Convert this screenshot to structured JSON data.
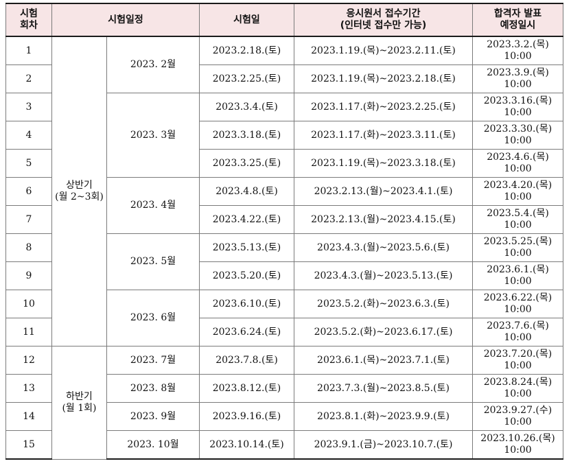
{
  "headers": {
    "round_l1": "시험",
    "round_l2": "회차",
    "schedule": "시험일정",
    "exam_date": "시험일",
    "apply_l1": "응시원서 접수기간",
    "apply_l2": "(인터넷 접수만 가능)",
    "result_l1": "합격자 발표",
    "result_l2": "예정일시"
  },
  "halves": [
    {
      "l1": "상반기",
      "l2": "(월 2~3회)"
    },
    {
      "l1": "하반기",
      "l2": "(월 1회)"
    }
  ],
  "months": [
    "2023. 2월",
    "2023. 3월",
    "2023. 4월",
    "2023. 5월",
    "2023. 6월",
    "2023. 7월",
    "2023. 8월",
    "2023. 9월",
    "2023. 10월"
  ],
  "rows": [
    {
      "no": "1",
      "exam": "2023.2.18.(토)",
      "apply": "2023.1.19.(목)~2023.2.11.(토)",
      "result_date": "2023.3.2.(목)",
      "result_time": "10:00"
    },
    {
      "no": "2",
      "exam": "2023.2.25.(토)",
      "apply": "2023.1.19.(목)~2023.2.18.(토)",
      "result_date": "2023.3.9.(목)",
      "result_time": "10:00"
    },
    {
      "no": "3",
      "exam": "2023.3.4.(토)",
      "apply": "2023.1.17.(화)~2023.2.25.(토)",
      "result_date": "2023.3.16.(목)",
      "result_time": "10:00"
    },
    {
      "no": "4",
      "exam": "2023.3.18.(토)",
      "apply": "2023.1.17.(화)~2023.3.11.(토)",
      "result_date": "2023.3.30.(목)",
      "result_time": "10:00"
    },
    {
      "no": "5",
      "exam": "2023.3.25.(토)",
      "apply": "2023.1.19.(목)~2023.3.18.(토)",
      "result_date": "2023.4.6.(목)",
      "result_time": "10:00"
    },
    {
      "no": "6",
      "exam": "2023.4.8.(토)",
      "apply": "2023.2.13.(월)~2023.4.1.(토)",
      "result_date": "2023.4.20.(목)",
      "result_time": "10:00"
    },
    {
      "no": "7",
      "exam": "2023.4.22.(토)",
      "apply": "2023.2.13.(월)~2023.4.15.(토)",
      "result_date": "2023.5.4.(목)",
      "result_time": "10:00"
    },
    {
      "no": "8",
      "exam": "2023.5.13.(토)",
      "apply": "2023.4.3.(월)~2023.5.6.(토)",
      "result_date": "2023.5.25.(목)",
      "result_time": "10:00"
    },
    {
      "no": "9",
      "exam": "2023.5.20.(토)",
      "apply": "2023.4.3.(월)~2023.5.13.(토)",
      "result_date": "2023.6.1.(목)",
      "result_time": "10:00"
    },
    {
      "no": "10",
      "exam": "2023.6.10.(토)",
      "apply": "2023.5.2.(화)~2023.6.3.(토)",
      "result_date": "2023.6.22.(목)",
      "result_time": "10:00"
    },
    {
      "no": "11",
      "exam": "2023.6.24.(토)",
      "apply": "2023.5.2.(화)~2023.6.17.(토)",
      "result_date": "2023.7.6.(목)",
      "result_time": "10:00"
    },
    {
      "no": "12",
      "exam": "2023.7.8.(토)",
      "apply": "2023.6.1.(목)~2023.7.1.(토)",
      "result_date": "2023.7.20.(목)",
      "result_time": "10:00"
    },
    {
      "no": "13",
      "exam": "2023.8.12.(토)",
      "apply": "2023.7.3.(월)~2023.8.5.(토)",
      "result_date": "2023.8.24.(목)",
      "result_time": "10:00"
    },
    {
      "no": "14",
      "exam": "2023.9.16.(토)",
      "apply": "2023.8.1.(화)~2023.9.9.(토)",
      "result_date": "2023.9.27.(수)",
      "result_time": "10:00"
    },
    {
      "no": "15",
      "exam": "2023.10.14.(토)",
      "apply": "2023.9.1.(금)~2023.10.7.(토)",
      "result_date": "2023.10.26.(목)",
      "result_time": "10:00"
    }
  ]
}
